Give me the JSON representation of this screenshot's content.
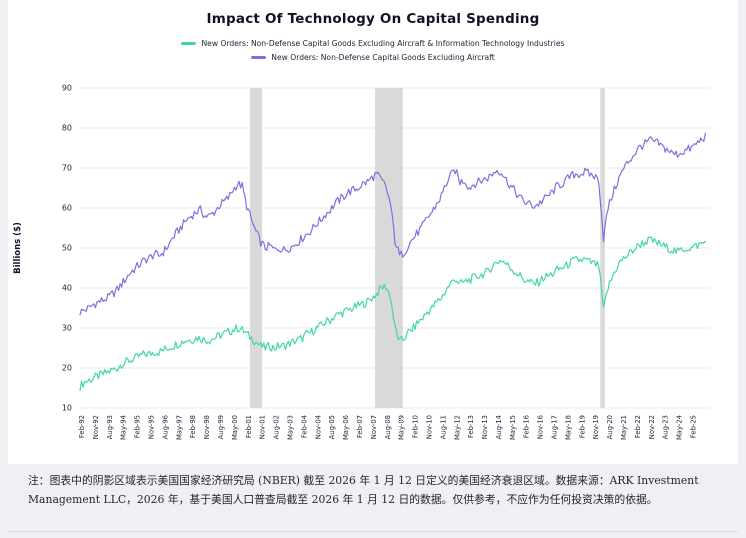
{
  "page": {
    "background": "#f0eff4"
  },
  "chart": {
    "title": "Impact Of Technology On Capital Spending",
    "ylabel": "Billions ($)",
    "legend": [
      {
        "label": "New Orders: Non-Defense Capital Goods Excluding Aircraft & Information Technology Industries",
        "color": "#42d89b"
      },
      {
        "label": "New Orders: Non-Defense Capital Goods Excluding Aircraft",
        "color": "#7d70de"
      }
    ]
  },
  "chart_data": {
    "type": "line",
    "title": "Impact Of Technology On Capital Spending",
    "ylabel": "Billions ($)",
    "xlabel": "",
    "ylim": [
      10,
      90
    ],
    "yticks": [
      10,
      20,
      30,
      40,
      50,
      60,
      70,
      80,
      90
    ],
    "xlim": [
      1992.0,
      2026.0
    ],
    "x_start": 1992.0,
    "x_step": 0.25,
    "grid": "horizontal",
    "legend_position": "top",
    "xtick_start": 1992.083,
    "xtick_step": 0.75,
    "xtick_labels": [
      "Feb-92",
      "Nov-92",
      "Aug-93",
      "May-94",
      "Feb-95",
      "Nov-95",
      "Aug-96",
      "May-97",
      "Feb-98",
      "Nov-98",
      "Aug-99",
      "May-00",
      "Feb-01",
      "Nov-01",
      "Aug-02",
      "May-03",
      "Feb-04",
      "Nov-04",
      "Aug-05",
      "May-06",
      "Feb-07",
      "Nov-07",
      "Aug-08",
      "May-09",
      "Feb-10",
      "Nov-10",
      "Aug-11",
      "May-12",
      "Feb-13",
      "Nov-13",
      "Aug-14",
      "May-15",
      "Feb-16",
      "Nov-16",
      "Aug-17",
      "May-18",
      "Feb-19",
      "Nov-19",
      "Aug-20",
      "May-21",
      "Feb-22",
      "Nov-22",
      "Aug-23",
      "May-24",
      "Feb-25"
    ],
    "shaded_regions": [
      {
        "label": "2001 recession",
        "from": 2001.17,
        "to": 2001.83
      },
      {
        "label": "2008-09 recession",
        "from": 2007.92,
        "to": 2009.42
      },
      {
        "label": "2020 recession",
        "from": 2020.08,
        "to": 2020.33
      }
    ],
    "shade_color": "#d9d9d9",
    "series": [
      {
        "name": "New Orders: Non-Defense Capital Goods Excluding Aircraft & Information Technology Industries",
        "color": "#42d89b",
        "values": [
          15.5,
          16.5,
          17,
          17.5,
          18,
          18.5,
          19,
          19.5,
          20,
          21,
          21.5,
          22,
          22.5,
          23,
          23.5,
          23.5,
          24,
          24,
          24.5,
          25,
          25.5,
          26,
          26.5,
          27,
          27,
          27.5,
          27.5,
          27,
          27,
          27.5,
          28,
          28.5,
          29,
          29.5,
          30,
          29.5,
          28.5,
          27.5,
          26.5,
          25.5,
          25,
          25.5,
          25,
          25.5,
          25.5,
          26,
          26.5,
          27,
          27.5,
          28.5,
          29,
          30,
          30.5,
          31.5,
          32,
          33,
          33.5,
          34,
          34.5,
          35,
          35.5,
          36,
          36.5,
          37.5,
          38.5,
          40,
          40.5,
          38,
          30,
          26.5,
          27.5,
          29,
          30,
          31.5,
          32.5,
          34,
          35,
          36.5,
          37.5,
          39.5,
          41,
          42.5,
          41,
          41.5,
          42,
          42.5,
          43,
          43.5,
          44,
          45.5,
          46.5,
          47,
          46,
          45,
          44,
          43,
          42,
          41.5,
          41,
          41.5,
          42.5,
          43,
          43.5,
          44.5,
          45,
          45.5,
          46.5,
          47,
          47,
          47,
          46.5,
          46,
          45.5,
          34.5,
          40,
          43,
          45.5,
          47,
          48,
          49,
          50,
          51,
          51.5,
          52,
          51.5,
          51,
          50.5,
          50,
          49.5,
          49,
          49.5,
          50,
          50,
          50.5,
          51,
          51.5
        ]
      },
      {
        "name": "New Orders: Non-Defense Capital Goods Excluding Aircraft",
        "color": "#7d70de",
        "values": [
          34,
          34.5,
          35,
          36,
          36.5,
          37,
          37.5,
          38.5,
          39.5,
          41,
          42.5,
          44,
          45,
          46,
          47,
          47.5,
          48.5,
          48,
          49,
          50.5,
          52.5,
          54,
          55.5,
          57,
          58,
          59,
          59.5,
          58,
          58,
          59,
          60.5,
          61.5,
          62.5,
          64.5,
          66,
          65.5,
          60.5,
          57,
          54,
          51.5,
          50,
          50.5,
          49.5,
          50,
          49.5,
          50,
          50.5,
          51.5,
          52.5,
          53.5,
          54.5,
          56,
          57,
          58.5,
          59.5,
          61,
          62,
          63,
          64,
          64.5,
          65,
          66,
          66.5,
          67.5,
          68.5,
          67,
          65.5,
          61,
          52,
          48,
          49,
          51,
          52.5,
          54,
          55.5,
          57.5,
          59,
          61,
          63,
          66,
          68,
          69.5,
          66.5,
          67,
          65,
          66,
          66.5,
          67,
          67.5,
          68.5,
          69.5,
          69,
          67,
          65.5,
          64,
          62.5,
          61.5,
          61,
          60.5,
          61,
          62,
          63,
          64,
          65.5,
          66,
          67,
          68,
          68.5,
          68.5,
          69,
          68.5,
          68,
          67,
          52.5,
          60,
          63.5,
          66.5,
          69,
          71,
          72.5,
          74,
          75.5,
          76,
          77,
          76.5,
          76,
          75,
          74.5,
          73.5,
          73.5,
          74,
          74.5,
          75,
          76,
          77,
          78
        ]
      }
    ]
  },
  "note": {
    "text": "注：图表中的阴影区域表示美国国家经济研究局 (NBER) 截至 2026 年 1 月 12 日定义的美国经济衰退区域。数据来源：ARK Investment Management LLC，2026 年，基于美国人口普查局截至 2026 年 1 月 12 日的数据。仅供参考，不应作为任何投资决策的依据。"
  }
}
